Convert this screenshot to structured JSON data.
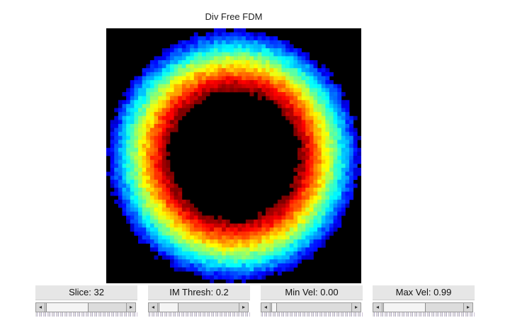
{
  "window": {
    "title": "Div Free FDM"
  },
  "colormap": "jet",
  "heatmap_colors": {
    "background": "#000000",
    "scale": [
      "#00007f",
      "#0000ff",
      "#007fff",
      "#00ffff",
      "#7fff7f",
      "#ffff00",
      "#ff7f00",
      "#ff0000",
      "#7f0000"
    ]
  },
  "chart_data": {
    "type": "heatmap",
    "title": "Div Free FDM",
    "description_of_values": [],
    "colormap": "jet",
    "value_range": [
      0.0,
      0.99
    ],
    "grid": false
  },
  "sliders": [
    {
      "label": "Slice: 32",
      "value": 0.5
    },
    {
      "label": "IM Thresh: 0.2",
      "value": 0.2
    },
    {
      "label": "Min Vel: 0.00",
      "value": 0.0
    },
    {
      "label": "Max Vel: 0.99",
      "value": 0.99
    }
  ]
}
